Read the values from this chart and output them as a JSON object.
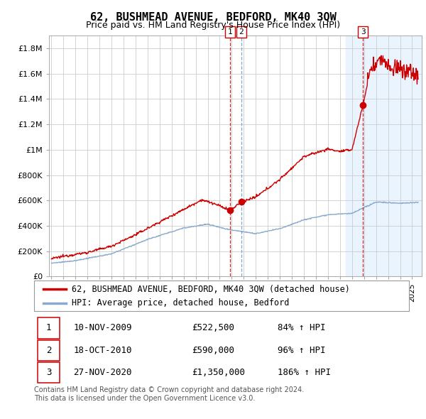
{
  "title": "62, BUSHMEAD AVENUE, BEDFORD, MK40 3QW",
  "subtitle": "Price paid vs. HM Land Registry's House Price Index (HPI)",
  "ylim": [
    0,
    1900000
  ],
  "yticks": [
    0,
    200000,
    400000,
    600000,
    800000,
    1000000,
    1200000,
    1400000,
    1600000,
    1800000
  ],
  "ytick_labels": [
    "£0",
    "£200K",
    "£400K",
    "£600K",
    "£800K",
    "£1M",
    "£1.2M",
    "£1.4M",
    "£1.6M",
    "£1.8M"
  ],
  "xlim_start": 1994.8,
  "xlim_end": 2025.8,
  "sale_dates": [
    2009.86,
    2010.8,
    2020.91
  ],
  "sale_prices": [
    522500,
    590000,
    1350000
  ],
  "sale_labels": [
    "1",
    "2",
    "3"
  ],
  "sale_vline_colors": [
    "#cc0000",
    "#6699cc",
    "#cc0000"
  ],
  "sale_info": [
    {
      "label": "1",
      "date": "10-NOV-2009",
      "price": "£522,500",
      "pct": "84%",
      "dir": "↑"
    },
    {
      "label": "2",
      "date": "18-OCT-2010",
      "price": "£590,000",
      "pct": "96%",
      "dir": "↑"
    },
    {
      "label": "3",
      "date": "27-NOV-2020",
      "price": "£1,350,000",
      "pct": "186%",
      "dir": "↑"
    }
  ],
  "legend_line1": "62, BUSHMEAD AVENUE, BEDFORD, MK40 3QW (detached house)",
  "legend_line2": "HPI: Average price, detached house, Bedford",
  "footnote1": "Contains HM Land Registry data © Crown copyright and database right 2024.",
  "footnote2": "This data is licensed under the Open Government Licence v3.0.",
  "red_color": "#cc0000",
  "blue_color": "#88aacc",
  "shade_color": "#ddeeff",
  "shade_start": 2019.5,
  "grid_color": "#cccccc",
  "title_fontsize": 11,
  "subtitle_fontsize": 9,
  "tick_fontsize": 8,
  "legend_fontsize": 8.5,
  "table_fontsize": 9,
  "footnote_fontsize": 7
}
